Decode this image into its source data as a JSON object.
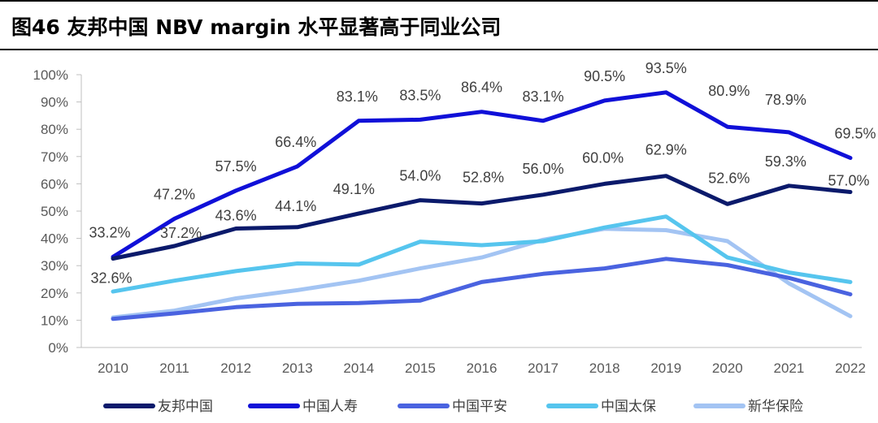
{
  "title": "图46 友邦中国 NBV margin 水平显著高于同业公司",
  "chart_data": {
    "type": "line",
    "title": "图46 友邦中国 NBV margin 水平显著高于同业公司",
    "xlabel": "",
    "ylabel": "",
    "x": [
      "2010",
      "2011",
      "2012",
      "2013",
      "2014",
      "2015",
      "2016",
      "2017",
      "2018",
      "2019",
      "2020",
      "2021",
      "2022"
    ],
    "ylim": [
      0,
      100
    ],
    "yticks": [
      "0%",
      "10%",
      "20%",
      "30%",
      "40%",
      "50%",
      "60%",
      "70%",
      "80%",
      "90%",
      "100%"
    ],
    "grid": false,
    "legend_position": "bottom",
    "series": [
      {
        "name": "友邦中国",
        "color": "#0b1a6b",
        "values": [
          32.6,
          37.2,
          43.6,
          44.1,
          49.1,
          54.0,
          52.8,
          56.0,
          60.0,
          62.9,
          52.6,
          59.3,
          57.0
        ],
        "labels": [
          "32.6%",
          "37.2%",
          "43.6%",
          "44.1%",
          "49.1%",
          "54.0%",
          "52.8%",
          "56.0%",
          "60.0%",
          "62.9%",
          "52.6%",
          "59.3%",
          "57.0%"
        ]
      },
      {
        "name": "中国人寿",
        "color": "#1010d8",
        "values": [
          33.2,
          47.2,
          57.5,
          66.4,
          83.1,
          83.5,
          86.4,
          83.1,
          90.5,
          93.5,
          80.9,
          78.9,
          69.5
        ],
        "labels": [
          "33.2%",
          "47.2%",
          "57.5%",
          "66.4%",
          "83.1%",
          "83.5%",
          "86.4%",
          "83.1%",
          "90.5%",
          "93.5%",
          "80.9%",
          "78.9%",
          "69.5%"
        ]
      },
      {
        "name": "中国平安",
        "color": "#4a63e0",
        "values": [
          10.5,
          12.5,
          14.8,
          16.0,
          16.3,
          17.2,
          24.0,
          27.0,
          29.0,
          32.5,
          30.2,
          25.5,
          19.5
        ]
      },
      {
        "name": "中国太保",
        "color": "#56c5ee",
        "values": [
          20.5,
          24.5,
          28.0,
          30.8,
          30.4,
          38.8,
          37.5,
          39.0,
          44.0,
          48.0,
          33.0,
          27.5,
          24.0
        ]
      },
      {
        "name": "新华保险",
        "color": "#a3c4f3",
        "values": [
          11.0,
          13.5,
          18.0,
          21.0,
          24.5,
          29.0,
          33.0,
          39.5,
          43.5,
          43.0,
          39.0,
          23.5,
          11.5
        ]
      }
    ]
  }
}
